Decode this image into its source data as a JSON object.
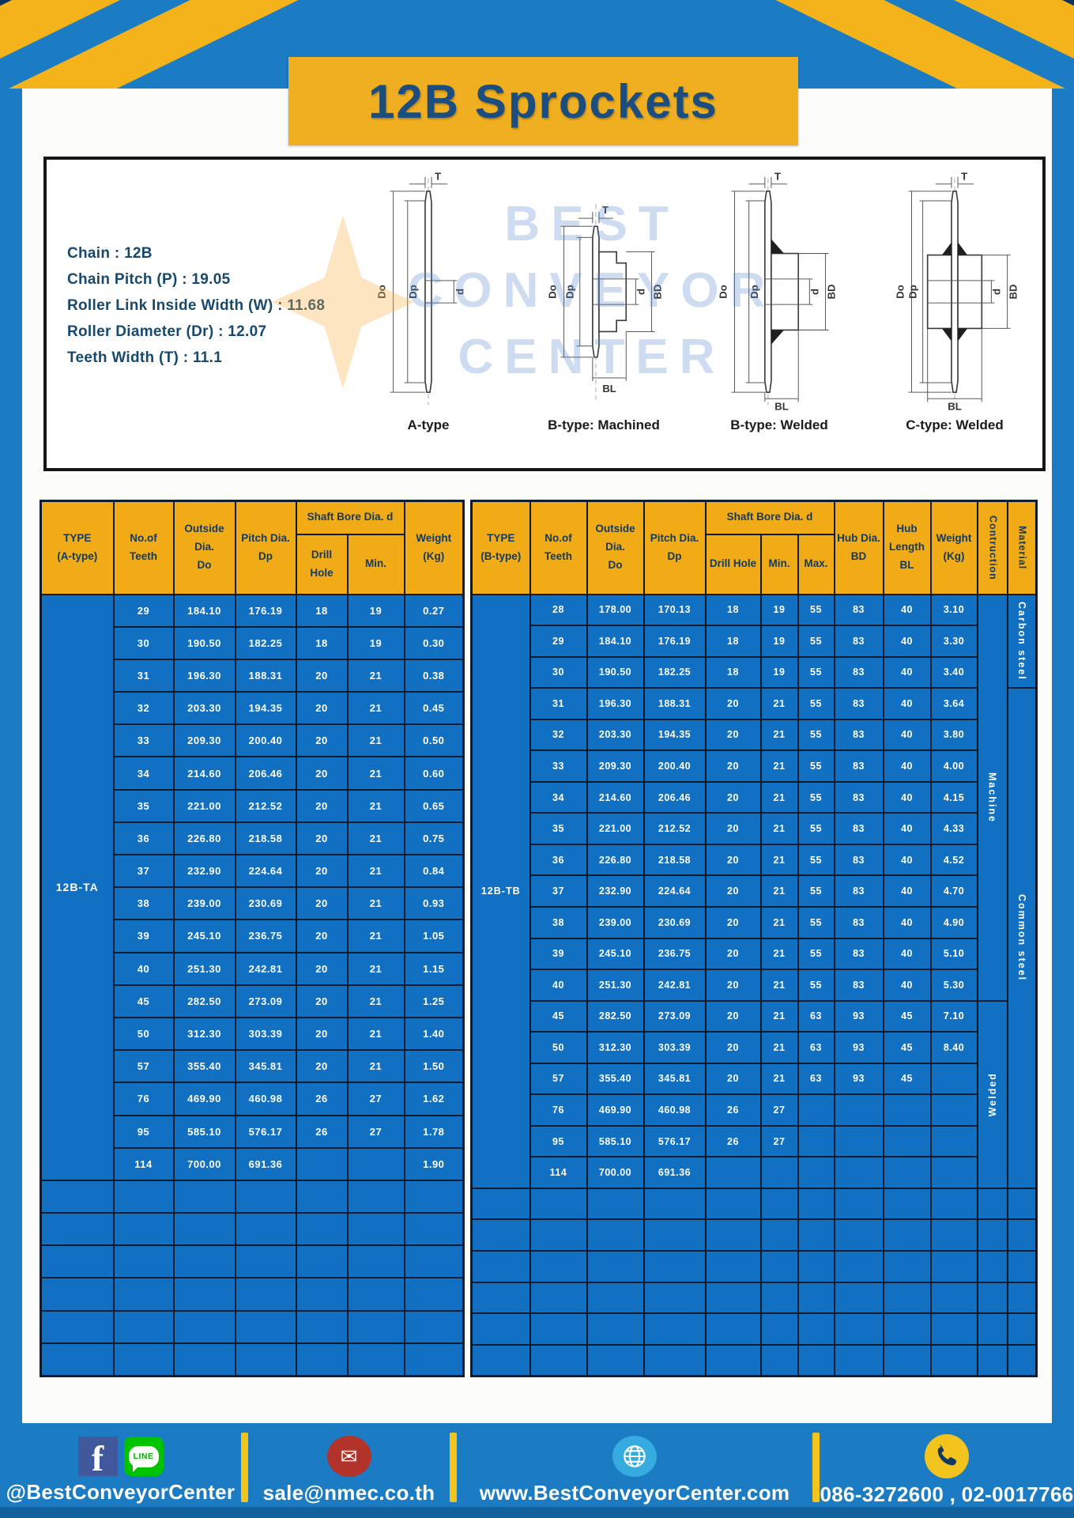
{
  "title": "12B Sprockets",
  "specs": [
    {
      "label": "Chain",
      "value": "12B"
    },
    {
      "label": "Chain Pitch (P)",
      "value": "19.05"
    },
    {
      "label": "Roller Link Inside Width (W)",
      "value": "11.68"
    },
    {
      "label": "Roller Diameter (Dr)",
      "value": "12.07"
    },
    {
      "label": "Teeth Width (T)",
      "value": "11.1"
    }
  ],
  "diagram": {
    "captions": [
      "A-type",
      "B-type: Machined",
      "B-type: Welded",
      "C-type: Welded"
    ],
    "dims": {
      "t": "T",
      "outside": "Do",
      "pitch": "Dp",
      "bore": "d",
      "hub": "BD",
      "hub_length": "BL"
    },
    "watermark_lines": [
      "BEST",
      "CONVEYOR",
      "CENTER"
    ]
  },
  "table_a": {
    "headers": {
      "type": "TYPE\n(A-type)",
      "teeth": "No.of\nTeeth",
      "outside": "Outside\nDia.\nDo",
      "pitch": "Pitch Dia.\nDp",
      "shaft_bore": "Shaft Bore Dia. d",
      "drill": "Drill Hole",
      "min": "Min.",
      "weight": "Weight\n(Kg)"
    },
    "type_label": "12B-TA",
    "rows": [
      [
        "29",
        "184.10",
        "176.19",
        "18",
        "19",
        "0.27"
      ],
      [
        "30",
        "190.50",
        "182.25",
        "18",
        "19",
        "0.30"
      ],
      [
        "31",
        "196.30",
        "188.31",
        "20",
        "21",
        "0.38"
      ],
      [
        "32",
        "203.30",
        "194.35",
        "20",
        "21",
        "0.45"
      ],
      [
        "33",
        "209.30",
        "200.40",
        "20",
        "21",
        "0.50"
      ],
      [
        "34",
        "214.60",
        "206.46",
        "20",
        "21",
        "0.60"
      ],
      [
        "35",
        "221.00",
        "212.52",
        "20",
        "21",
        "0.65"
      ],
      [
        "36",
        "226.80",
        "218.58",
        "20",
        "21",
        "0.75"
      ],
      [
        "37",
        "232.90",
        "224.64",
        "20",
        "21",
        "0.84"
      ],
      [
        "38",
        "239.00",
        "230.69",
        "20",
        "21",
        "0.93"
      ],
      [
        "39",
        "245.10",
        "236.75",
        "20",
        "21",
        "1.05"
      ],
      [
        "40",
        "251.30",
        "242.81",
        "20",
        "21",
        "1.15"
      ],
      [
        "45",
        "282.50",
        "273.09",
        "20",
        "21",
        "1.25"
      ],
      [
        "50",
        "312.30",
        "303.39",
        "20",
        "21",
        "1.40"
      ],
      [
        "57",
        "355.40",
        "345.81",
        "20",
        "21",
        "1.50"
      ],
      [
        "76",
        "469.90",
        "460.98",
        "26",
        "27",
        "1.62"
      ],
      [
        "95",
        "585.10",
        "576.17",
        "26",
        "27",
        "1.78"
      ],
      [
        "114",
        "700.00",
        "691.36",
        "",
        "",
        "1.90"
      ]
    ],
    "empty_rows": 6
  },
  "table_b": {
    "headers": {
      "type": "TYPE\n(B-type)",
      "teeth": "No.of\nTeeth",
      "outside": "Outside\nDia.\nDo",
      "pitch": "Pitch Dia.\nDp",
      "shaft_bore": "Shaft Bore Dia. d",
      "drill": "Drill Hole",
      "min": "Min.",
      "max": "Max.",
      "hub_dia": "Hub Dia.\nBD",
      "hub_length": "Hub\nLength\nBL",
      "weight": "Weight\n(Kg)",
      "construction": "Contruction",
      "material": "Material"
    },
    "type_label": "12B-TB",
    "rows": [
      [
        "28",
        "178.00",
        "170.13",
        "18",
        "19",
        "55",
        "83",
        "40",
        "3.10"
      ],
      [
        "29",
        "184.10",
        "176.19",
        "18",
        "19",
        "55",
        "83",
        "40",
        "3.30"
      ],
      [
        "30",
        "190.50",
        "182.25",
        "18",
        "19",
        "55",
        "83",
        "40",
        "3.40"
      ],
      [
        "31",
        "196.30",
        "188.31",
        "20",
        "21",
        "55",
        "83",
        "40",
        "3.64"
      ],
      [
        "32",
        "203.30",
        "194.35",
        "20",
        "21",
        "55",
        "83",
        "40",
        "3.80"
      ],
      [
        "33",
        "209.30",
        "200.40",
        "20",
        "21",
        "55",
        "83",
        "40",
        "4.00"
      ],
      [
        "34",
        "214.60",
        "206.46",
        "20",
        "21",
        "55",
        "83",
        "40",
        "4.15"
      ],
      [
        "35",
        "221.00",
        "212.52",
        "20",
        "21",
        "55",
        "83",
        "40",
        "4.33"
      ],
      [
        "36",
        "226.80",
        "218.58",
        "20",
        "21",
        "55",
        "83",
        "40",
        "4.52"
      ],
      [
        "37",
        "232.90",
        "224.64",
        "20",
        "21",
        "55",
        "83",
        "40",
        "4.70"
      ],
      [
        "38",
        "239.00",
        "230.69",
        "20",
        "21",
        "55",
        "83",
        "40",
        "4.90"
      ],
      [
        "39",
        "245.10",
        "236.75",
        "20",
        "21",
        "55",
        "83",
        "40",
        "5.10"
      ],
      [
        "40",
        "251.30",
        "242.81",
        "20",
        "21",
        "55",
        "83",
        "40",
        "5.30"
      ],
      [
        "45",
        "282.50",
        "273.09",
        "20",
        "21",
        "63",
        "93",
        "45",
        "7.10"
      ],
      [
        "50",
        "312.30",
        "303.39",
        "20",
        "21",
        "63",
        "93",
        "45",
        "8.40"
      ],
      [
        "57",
        "355.40",
        "345.81",
        "20",
        "21",
        "63",
        "93",
        "45",
        ""
      ],
      [
        "76",
        "469.90",
        "460.98",
        "26",
        "27",
        "",
        "",
        "",
        ""
      ],
      [
        "95",
        "585.10",
        "576.17",
        "26",
        "27",
        "",
        "",
        "",
        ""
      ],
      [
        "114",
        "700.00",
        "691.36",
        "",
        "",
        "",
        "",
        "",
        ""
      ]
    ],
    "construction_spans": [
      {
        "label": "Machine",
        "start": 0,
        "rows": 13,
        "dir": "down"
      },
      {
        "label": "Welded",
        "start": 13,
        "rows": 6,
        "dir": "up"
      }
    ],
    "material_spans": [
      {
        "label": "Carbon steel",
        "start": 0,
        "rows": 3
      },
      {
        "label": "Common steel",
        "start": 3,
        "rows": 16
      }
    ],
    "empty_rows": 6
  },
  "footer": {
    "social_handle": "@BestConveyorCenter",
    "line_label": "LINE",
    "email": "sale@nmec.co.th",
    "website": "www.BestConveyorCenter.com",
    "phones": "086-3272600 , 02-0017766"
  },
  "icons": {
    "facebook_glyph": "f",
    "mail_glyph": "✉"
  },
  "colors": {
    "frame_blue": "#1b7cc4",
    "table_blue": "#1270c2",
    "header_yellow": "#f0ab17",
    "banner_yellow": "#f0af20",
    "navy_text": "#14395c",
    "cell_border": "#0b1b30",
    "footer_strip": "#11629f"
  }
}
